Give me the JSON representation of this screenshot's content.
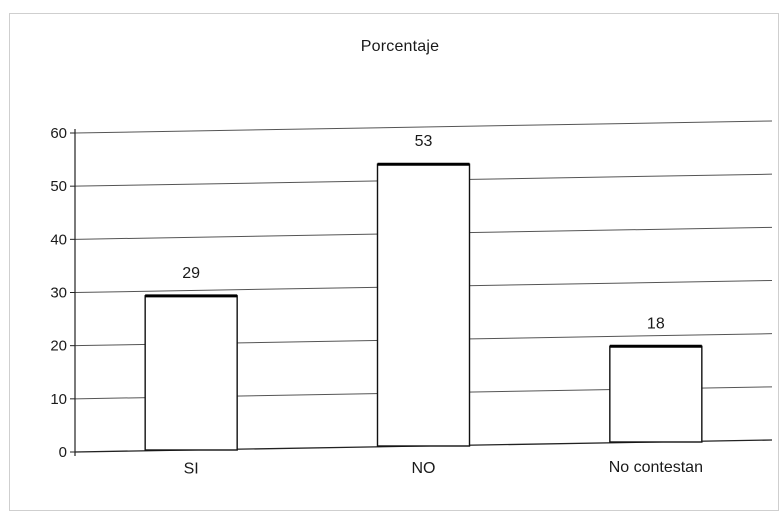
{
  "chart_data": {
    "type": "bar",
    "title": "Porcentaje",
    "categories": [
      "SI",
      "NO",
      "No contestan"
    ],
    "values": [
      29,
      53,
      18
    ],
    "data_labels": [
      "29",
      "53",
      "18"
    ],
    "yticks": [
      "0",
      "10",
      "20",
      "30",
      "40",
      "50",
      "60"
    ],
    "ylim": [
      0,
      60
    ],
    "xlabel": "",
    "ylabel": "",
    "grid": true,
    "legend": "none",
    "bar_fill": "#ffffff",
    "bar_stroke": "#111111",
    "grid_color": "#555555"
  }
}
